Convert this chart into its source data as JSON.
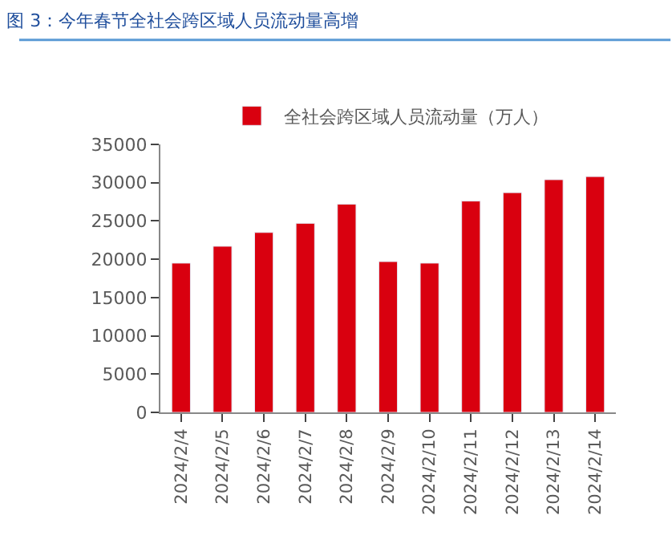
{
  "chart_data": {
    "type": "bar",
    "title": "图 3：今年春节全社会跨区域人员流动量高增",
    "categories": [
      "2024/2/4",
      "2024/2/5",
      "2024/2/6",
      "2024/2/7",
      "2024/2/8",
      "2024/2/9",
      "2024/2/10",
      "2024/2/11",
      "2024/2/12",
      "2024/2/13",
      "2024/2/14"
    ],
    "series": [
      {
        "name": "全社会跨区域人员流动量（万人）",
        "color": "#d9000f",
        "values": [
          19500,
          21700,
          23500,
          24700,
          27200,
          19700,
          19500,
          27600,
          28700,
          30400,
          30800
        ]
      }
    ],
    "ylim": [
      0,
      35000
    ],
    "yticks": [
      0,
      5000,
      10000,
      15000,
      20000,
      25000,
      30000,
      35000
    ],
    "legend": "top"
  }
}
